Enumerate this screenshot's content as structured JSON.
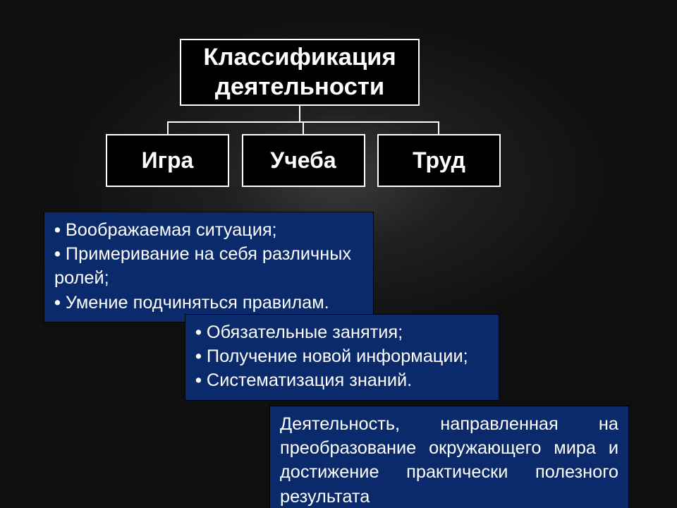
{
  "colors": {
    "background_base": "#0a0a0a",
    "box_bg": "#000000",
    "box_border": "#ffffff",
    "box_text": "#ffffff",
    "connector": "#ffffff",
    "card_bg": "#0a2a6b",
    "card_border": "#000000",
    "card_text": "#ffffff"
  },
  "fonts": {
    "family": "Comic Sans MS",
    "root_size_pt": 26,
    "child_size_pt": 24,
    "card_size_pt": 19
  },
  "diagram": {
    "type": "tree",
    "root": {
      "label": "Классификация деятельности"
    },
    "children": [
      {
        "label": "Игра"
      },
      {
        "label": "Учеба"
      },
      {
        "label": "Труд"
      }
    ]
  },
  "cards": [
    {
      "kind": "bulleted",
      "items": [
        "Воображаемая ситуация;",
        "Примеривание на себя различных ролей;",
        "Умение подчиняться правилам."
      ]
    },
    {
      "kind": "bulleted",
      "items": [
        "Обязательные занятия;",
        "Получение новой информации;",
        "Систематизация знаний."
      ]
    },
    {
      "kind": "paragraph",
      "text": "Деятельность, направленная на преобразование окружающего мира и достижение практически полезного результата"
    }
  ]
}
